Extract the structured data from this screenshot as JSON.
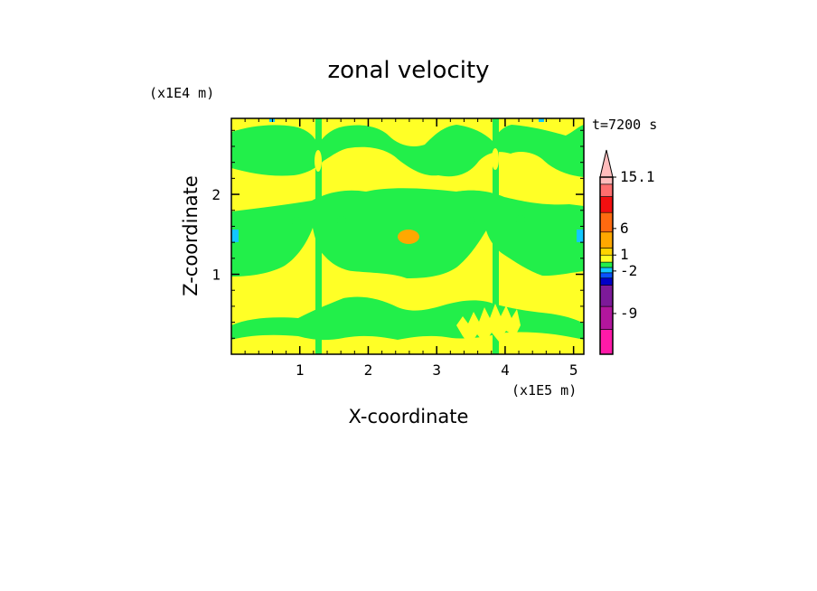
{
  "chart_data": {
    "type": "heatmap",
    "title": "zonal velocity",
    "xlabel": "X-coordinate",
    "ylabel": "Z-coordinate",
    "x_unit": "(x1E5 m)",
    "y_unit": "(x1E4 m)",
    "time_label": "t=7200 s",
    "xlim": [
      0,
      5.15
    ],
    "ylim": [
      0,
      2.95
    ],
    "x_ticks": [
      "1",
      "2",
      "3",
      "4",
      "5"
    ],
    "y_ticks": [
      "1",
      "2"
    ],
    "x_tick_values": [
      1,
      2,
      3,
      4,
      5
    ],
    "y_tick_values": [
      1,
      2
    ],
    "grid": false,
    "colorbar": {
      "placement": "right",
      "extend": "max",
      "levels": [
        {
          "color": "#ff1aa8"
        },
        {
          "color": "#b2169d"
        },
        {
          "color": "#7d1a99"
        },
        {
          "color": "#0000c8"
        },
        {
          "color": "#0a53ff"
        },
        {
          "color": "#12c8ff"
        },
        {
          "color": "#22ef4a"
        },
        {
          "color": "#ffff26"
        },
        {
          "color": "#ffd400"
        },
        {
          "color": "#ffa800"
        },
        {
          "color": "#ff6a10"
        },
        {
          "color": "#f20f10"
        },
        {
          "color": "#ff6f6f"
        },
        {
          "color": "#ffbcbc"
        }
      ],
      "labels": [
        "-9",
        "-2",
        "1",
        "6",
        "15.1"
      ]
    },
    "palette": {
      "yellow": "#ffff26",
      "green": "#22ef4a",
      "orange": "#ffa800",
      "cyan": "#12c8ff"
    }
  }
}
